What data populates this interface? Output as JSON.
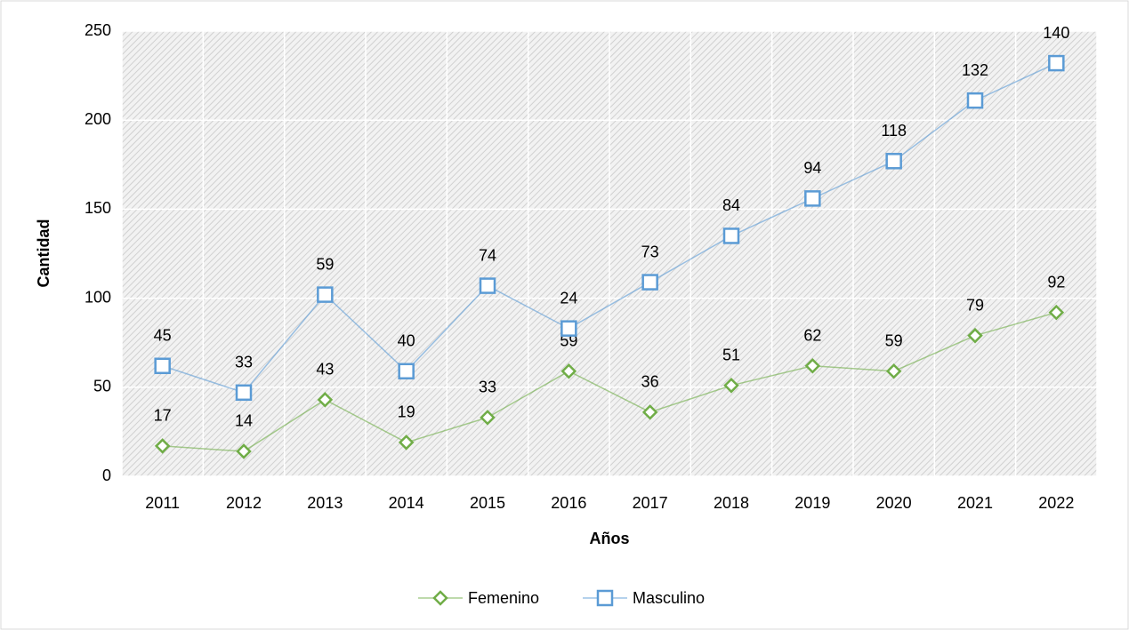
{
  "chart_data": {
    "type": "line",
    "stacked": true,
    "x_label": "Años",
    "y_label": "Cantidad",
    "categories": [
      "2011",
      "2012",
      "2013",
      "2014",
      "2015",
      "2016",
      "2017",
      "2018",
      "2019",
      "2020",
      "2021",
      "2022"
    ],
    "series": [
      {
        "name": "Femenino",
        "color": "#70ad47",
        "marker": "diamond",
        "values": [
          17,
          14,
          43,
          19,
          33,
          59,
          36,
          51,
          62,
          59,
          79,
          92
        ]
      },
      {
        "name": "Masculino",
        "color": "#5b9bd5",
        "marker": "square",
        "values": [
          45,
          33,
          59,
          40,
          74,
          24,
          73,
          84,
          94,
          118,
          132,
          140
        ]
      }
    ],
    "ylim": [
      0,
      250
    ],
    "yticks": [
      0,
      50,
      100,
      150,
      200,
      250
    ],
    "grid": true,
    "legend": "bottom"
  }
}
